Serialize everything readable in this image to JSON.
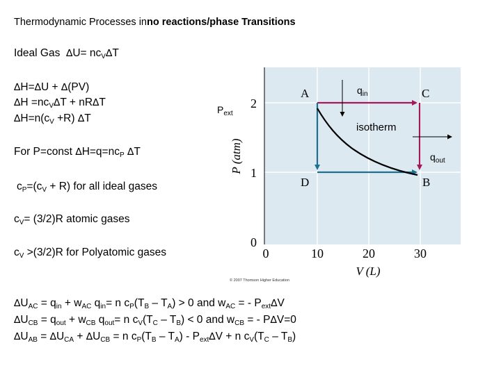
{
  "title": {
    "normal": "Thermodynamic Processes in",
    "bold": "no reactions/phase Transitions"
  },
  "delta": "∆",
  "lines": {
    "ideal_gas": "Ideal Gas",
    "dU_eq": "U= nc",
    "sub_V": "V",
    "T": "T",
    "dH_1a": "H=",
    "dH_1b": "U + ",
    "dH_1c": "(PV)",
    "dH_2a": "H =nc",
    "dH_2b": "T + nR",
    "dH_2c": "T",
    "dH_3a": "H=n(c",
    "dH_3b": " +R) ",
    "dH_3c": "T",
    "pconst_a": "For P=const ",
    "pconst_b": "H=q=nc",
    "sub_P": "P",
    "pconst_c": " ",
    "cp_a": "c",
    "cp_b": "=(c",
    "cp_c": "  + R)  for all ideal gases",
    "cv_a": "c",
    "cv_b": "= (3/2)R atomic gases",
    "cvp_a": "c",
    "cvp_b": " >(3/2)R for Polyatomic gases"
  },
  "equations": {
    "U": "U",
    "AC": "AC",
    "CB": "CB",
    "AB": "AB",
    "CA": "CA",
    "in": "in",
    "out": "out",
    "ext": "ext",
    "e1a": "  = q",
    "e1b": " + w",
    "e1c": "    q",
    "e1d": "= n c",
    "e1e": "(T",
    "e1f": " – T",
    "e1g": ") > 0 and w",
    "e1h": " = - P",
    "e1i": "V",
    "e2a": "  = q",
    "e2b": " + w",
    "e2c": "   q",
    "e2d": "= n c",
    "e2e": "(T",
    "e2f": " – T",
    "e2g": ") < 0 and w",
    "e2h": " = - P",
    "e2i": "V=0",
    "e3a": "  = ",
    "e3b": "  + ",
    "e3c": "  = n c",
    "e3d": "(T",
    "e3e": " – T",
    "e3f": ") - P",
    "e3g": "V + n c",
    "e3h": "(T",
    "e3i": " – T",
    "e3j": ")",
    "A": "A",
    "B": "B",
    "C": "C",
    "P": "P",
    "V": "V"
  },
  "diagram": {
    "p_ext_label": "P",
    "p_ext_sub": "ext",
    "q_in": "q",
    "q_in_sub": "in",
    "q_out": "q",
    "q_out_sub": "out",
    "isotherm": "isotherm",
    "point_A": "A",
    "point_B": "B",
    "point_C": "C",
    "point_D": "D",
    "y_axis_label": "P (atm)",
    "x_axis_label": "V (L)",
    "y_ticks": [
      "2",
      "1",
      "0"
    ],
    "x_ticks": [
      "0",
      "10",
      "20",
      "30"
    ],
    "copyright": "© 2007 Thomson Higher Education",
    "colors": {
      "plot_bg": "#dce9f0",
      "grid": "#ffffff",
      "path_magenta": "#a3195b",
      "path_teal": "#1f6f8f"
    }
  }
}
